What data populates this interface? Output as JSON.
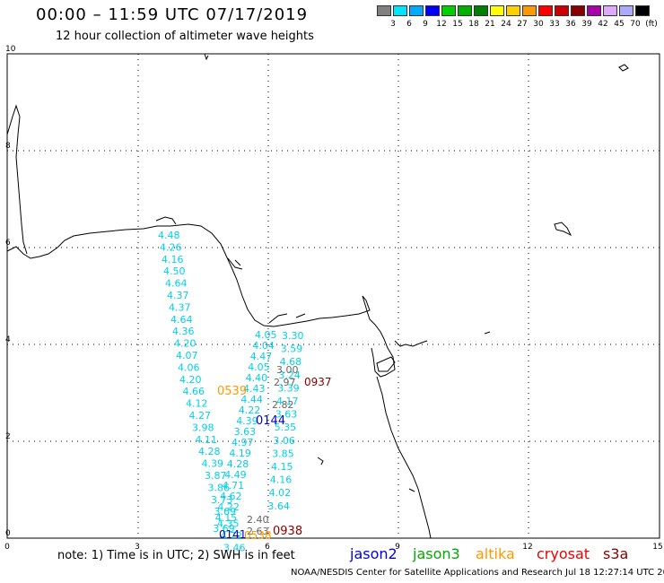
{
  "header": {
    "title": "00:00 – 11:59 UTC 07/17/2019",
    "subtitle": "12 hour collection of altimeter wave heights",
    "legend_unit": "(ft)",
    "legend": [
      {
        "color": "#808080",
        "label": "3"
      },
      {
        "color": "#00e5ff",
        "label": "6"
      },
      {
        "color": "#00aaff",
        "label": "9"
      },
      {
        "color": "#0000ff",
        "label": "12"
      },
      {
        "color": "#00d000",
        "label": "15"
      },
      {
        "color": "#00b000",
        "label": "18"
      },
      {
        "color": "#008000",
        "label": "21"
      },
      {
        "color": "#ffff00",
        "label": "24"
      },
      {
        "color": "#ffd000",
        "label": "27"
      },
      {
        "color": "#ff9900",
        "label": "30"
      },
      {
        "color": "#ff0000",
        "label": "33"
      },
      {
        "color": "#cc0000",
        "label": "36"
      },
      {
        "color": "#880000",
        "label": "39"
      },
      {
        "color": "#aa00aa",
        "label": "42"
      },
      {
        "color": "#ddaaff",
        "label": "45"
      },
      {
        "color": "#aaaaff",
        "label": "70"
      },
      {
        "color": "#000000",
        "label": ""
      }
    ]
  },
  "map": {
    "x_ticks": [
      "0",
      "3",
      "6",
      "9",
      "12",
      "15"
    ],
    "y_ticks": [
      "0",
      "2",
      "4",
      "6",
      "8",
      "10"
    ],
    "track_a": [
      "4.48",
      "4.26",
      "4.16",
      "4.50",
      "4.64",
      "4.37",
      "4.37",
      "4.64",
      "4.36",
      "4.20",
      "4.07",
      "4.06",
      "4.20",
      "4.66",
      "4.12",
      "4.27",
      "3.98",
      "4.11",
      "4.28",
      "4.39",
      "3.87",
      "3.86",
      "3.73",
      "3.69",
      "4.35",
      "4.72",
      "3.46"
    ],
    "track_b": [
      "4.05",
      "4.04",
      "4.47",
      "4.05",
      "4.40",
      "4.43",
      "4.44",
      "4.22",
      "4.39",
      "3.63",
      "4.97",
      "4.19",
      "4.28",
      "4.49",
      "4.71",
      "4.62",
      "4.22",
      "4.15",
      "3.69"
    ],
    "track_c": [
      "3.30",
      "3.59",
      "4.68",
      "3.24",
      "3.39",
      "4.17",
      "3.63",
      "5.35",
      "3.06",
      "3.85",
      "4.15",
      "4.16",
      "4.02",
      "3.64"
    ],
    "gray_values": [
      "3.00",
      "2.97",
      "2.82",
      "2.40",
      "2.63"
    ],
    "time_labels": [
      {
        "text": "0539",
        "color": "#ff9900"
      },
      {
        "text": "0937",
        "color": "#880000"
      },
      {
        "text": "0144",
        "color": "#0000cc"
      },
      {
        "text": "0938",
        "color": "#880000"
      },
      {
        "text": "0141",
        "color": "#0000cc"
      },
      {
        "text": "0538",
        "color": "#ff9900"
      }
    ]
  },
  "footer": {
    "note": "note: 1) Time is in UTC; 2) SWH is in feet",
    "credit": "NOAA/NESDIS Center for Satellite Applications and Research   Jul 18 12:27:14 UTC 2019",
    "satellites": [
      {
        "name": "jason2",
        "color": "#0000ee"
      },
      {
        "name": "jason3",
        "color": "#00aa00"
      },
      {
        "name": "altika",
        "color": "#ff9900"
      },
      {
        "name": "cryosat",
        "color": "#ee0000"
      },
      {
        "name": "s3a",
        "color": "#880000"
      }
    ]
  }
}
